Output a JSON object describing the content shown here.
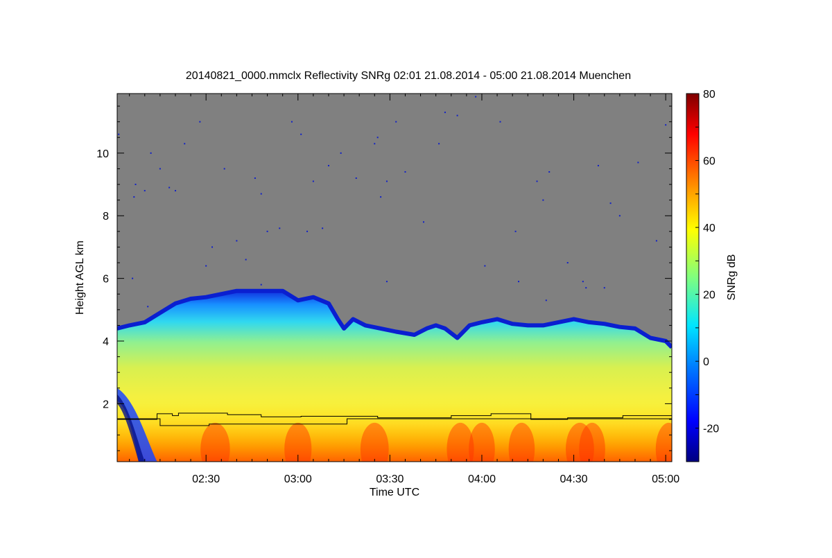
{
  "chart_data": {
    "type": "heatmap",
    "title": "20140821_0000.mmclx Reflectivity SNRg   02:01 21.08.2014 - 05:00 21.08.2014 Muenchen",
    "xlabel": "Time UTC",
    "ylabel": "Height AGL km",
    "xlim_minutes": [
      121,
      302
    ],
    "ylim": [
      0.15,
      11.9
    ],
    "x_ticks": [
      {
        "label": "02:30",
        "value": 150
      },
      {
        "label": "03:00",
        "value": 180
      },
      {
        "label": "03:30",
        "value": 210
      },
      {
        "label": "04:00",
        "value": 240
      },
      {
        "label": "04:30",
        "value": 270
      },
      {
        "label": "05:00",
        "value": 300
      }
    ],
    "y_ticks": [
      2,
      4,
      6,
      8,
      10
    ],
    "y_tick_labels": [
      "2",
      "4",
      "6",
      "8",
      "10"
    ],
    "colorbar": {
      "label": "SNRg dB",
      "range": [
        -30,
        80
      ],
      "ticks": [
        -20,
        0,
        20,
        40,
        60,
        80
      ],
      "tick_labels": [
        "-20",
        "0",
        "20",
        "40",
        "60",
        "80"
      ]
    },
    "background_color": "#808080",
    "cloud_top_km": [
      [
        121,
        4.4
      ],
      [
        125,
        4.5
      ],
      [
        130,
        4.6
      ],
      [
        135,
        4.9
      ],
      [
        140,
        5.2
      ],
      [
        145,
        5.35
      ],
      [
        150,
        5.4
      ],
      [
        155,
        5.5
      ],
      [
        160,
        5.6
      ],
      [
        165,
        5.6
      ],
      [
        170,
        5.6
      ],
      [
        175,
        5.6
      ],
      [
        180,
        5.3
      ],
      [
        185,
        5.4
      ],
      [
        190,
        5.2
      ],
      [
        193,
        4.7
      ],
      [
        195,
        4.4
      ],
      [
        198,
        4.7
      ],
      [
        202,
        4.5
      ],
      [
        207,
        4.4
      ],
      [
        212,
        4.3
      ],
      [
        218,
        4.2
      ],
      [
        222,
        4.4
      ],
      [
        225,
        4.5
      ],
      [
        228,
        4.4
      ],
      [
        232,
        4.1
      ],
      [
        236,
        4.5
      ],
      [
        240,
        4.6
      ],
      [
        245,
        4.7
      ],
      [
        250,
        4.55
      ],
      [
        255,
        4.5
      ],
      [
        260,
        4.5
      ],
      [
        265,
        4.6
      ],
      [
        270,
        4.7
      ],
      [
        275,
        4.6
      ],
      [
        280,
        4.55
      ],
      [
        285,
        4.45
      ],
      [
        290,
        4.4
      ],
      [
        295,
        4.1
      ],
      [
        300,
        4.0
      ],
      [
        302,
        3.8
      ]
    ],
    "upper_line_km": [
      [
        121,
        1.5
      ],
      [
        134,
        1.5
      ],
      [
        134,
        1.68
      ],
      [
        139,
        1.68
      ],
      [
        139,
        1.62
      ],
      [
        141,
        1.62
      ],
      [
        141,
        1.7
      ],
      [
        157,
        1.7
      ],
      [
        157,
        1.65
      ],
      [
        168,
        1.65
      ],
      [
        168,
        1.58
      ],
      [
        181,
        1.58
      ],
      [
        181,
        1.6
      ],
      [
        206,
        1.6
      ],
      [
        206,
        1.55
      ],
      [
        230,
        1.55
      ],
      [
        230,
        1.62
      ],
      [
        243,
        1.62
      ],
      [
        243,
        1.68
      ],
      [
        256,
        1.68
      ],
      [
        256,
        1.5
      ],
      [
        268,
        1.5
      ],
      [
        268,
        1.55
      ],
      [
        286,
        1.55
      ],
      [
        286,
        1.62
      ],
      [
        302,
        1.62
      ]
    ],
    "lower_line_km": [
      [
        121,
        1.52
      ],
      [
        135,
        1.52
      ],
      [
        135,
        1.3
      ],
      [
        151,
        1.3
      ],
      [
        151,
        1.35
      ],
      [
        196,
        1.35
      ],
      [
        196,
        1.52
      ],
      [
        302,
        1.52
      ]
    ],
    "scatter_speckles": [
      [
        121.5,
        10.6
      ],
      [
        127,
        9.0
      ],
      [
        126.5,
        8.6
      ],
      [
        130,
        8.8
      ],
      [
        132,
        10.0
      ],
      [
        135,
        9.5
      ],
      [
        138,
        8.9
      ],
      [
        140,
        8.8
      ],
      [
        143,
        10.3
      ],
      [
        148,
        11.0
      ],
      [
        150,
        6.4
      ],
      [
        152,
        7.0
      ],
      [
        156,
        9.5
      ],
      [
        160,
        7.2
      ],
      [
        163,
        6.6
      ],
      [
        166,
        9.2
      ],
      [
        168,
        8.7
      ],
      [
        170,
        7.5
      ],
      [
        174,
        7.6
      ],
      [
        178,
        11.0
      ],
      [
        181,
        10.6
      ],
      [
        183,
        7.5
      ],
      [
        185,
        9.1
      ],
      [
        188,
        7.6
      ],
      [
        190,
        9.6
      ],
      [
        194,
        10.0
      ],
      [
        199,
        9.2
      ],
      [
        205,
        10.3
      ],
      [
        206,
        10.5
      ],
      [
        207,
        8.6
      ],
      [
        209,
        9.1
      ],
      [
        212,
        11.0
      ],
      [
        215,
        9.4
      ],
      [
        221,
        7.8
      ],
      [
        226,
        10.3
      ],
      [
        228,
        11.3
      ],
      [
        232,
        11.2
      ],
      [
        238,
        11.8
      ],
      [
        246,
        11.0
      ],
      [
        251,
        7.5
      ],
      [
        258,
        9.1
      ],
      [
        260,
        8.5
      ],
      [
        262,
        9.4
      ],
      [
        268,
        6.5
      ],
      [
        274,
        5.7
      ],
      [
        278,
        9.6
      ],
      [
        282,
        8.4
      ],
      [
        285,
        8.0
      ],
      [
        291,
        9.7
      ],
      [
        297,
        7.2
      ],
      [
        300,
        10.9
      ],
      [
        126,
        6.0
      ],
      [
        131,
        5.1
      ],
      [
        168,
        5.8
      ],
      [
        209,
        5.9
      ],
      [
        241,
        6.4
      ],
      [
        252,
        5.9
      ],
      [
        261,
        5.3
      ],
      [
        273,
        5.9
      ],
      [
        280,
        5.7
      ]
    ]
  }
}
